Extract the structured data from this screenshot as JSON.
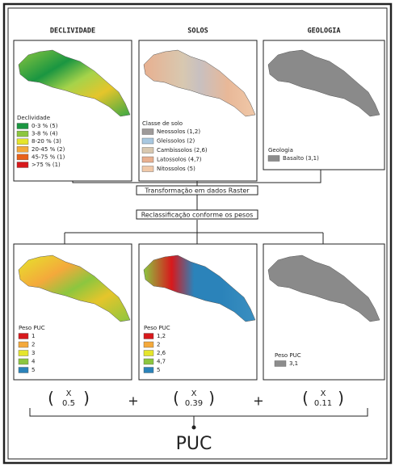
{
  "columns": [
    {
      "title": "DECLIVIDADE",
      "legend_title": "Declividade",
      "legend": [
        {
          "label": "0-3 % (5)",
          "color": "#1a9641"
        },
        {
          "label": "3-8 % (4)",
          "color": "#8cc63f"
        },
        {
          "label": "8-20 % (3)",
          "color": "#e5e52b"
        },
        {
          "label": "20-45 % (2)",
          "color": "#f4a93b"
        },
        {
          "label": "45-75 % (1)",
          "color": "#e8611a"
        },
        {
          "label": ">75 % (1)",
          "color": "#d7191c"
        }
      ]
    },
    {
      "title": "SOLOS",
      "legend_title": "Classe de solo",
      "legend": [
        {
          "label": "Neossolos (1,2)",
          "color": "#9e9a99"
        },
        {
          "label": "Gleissolos (2)",
          "color": "#a8c8e0"
        },
        {
          "label": "Cambissolos (2,6)",
          "color": "#d8c8b0"
        },
        {
          "label": "Latossolos (4,7)",
          "color": "#e8b090"
        },
        {
          "label": "Nitossolos (5)",
          "color": "#f0c8a8"
        }
      ]
    },
    {
      "title": "GEOLOGIA",
      "legend_title": "Geologia",
      "legend": [
        {
          "label": "Basalto (3,1)",
          "color": "#8c8c8c"
        }
      ]
    }
  ],
  "steps": [
    "Transformação em dados Raster",
    "Reclassificação conforme os pesos"
  ],
  "reclassified": [
    {
      "legend_title": "Peso PUC",
      "legend": [
        {
          "label": "1",
          "color": "#d7191c"
        },
        {
          "label": "2",
          "color": "#f4a93b"
        },
        {
          "label": "3",
          "color": "#e5e52b"
        },
        {
          "label": "4",
          "color": "#8cc63f"
        },
        {
          "label": "5",
          "color": "#2b83ba"
        }
      ]
    },
    {
      "legend_title": "Peso PUC",
      "legend": [
        {
          "label": "1,2",
          "color": "#d7191c"
        },
        {
          "label": "2",
          "color": "#f4a93b"
        },
        {
          "label": "2,6",
          "color": "#e5e52b"
        },
        {
          "label": "4,7",
          "color": "#8cc63f"
        },
        {
          "label": "5",
          "color": "#2b83ba"
        }
      ]
    },
    {
      "legend_title": "Peso PUC",
      "legend": [
        {
          "label": "3,1",
          "color": "#8c8c8c"
        }
      ]
    }
  ],
  "formula": {
    "open": "(",
    "close": ")",
    "operator": "X",
    "weights": [
      0.5,
      0.39,
      0.11
    ],
    "plus": "+"
  },
  "result": "PUC"
}
